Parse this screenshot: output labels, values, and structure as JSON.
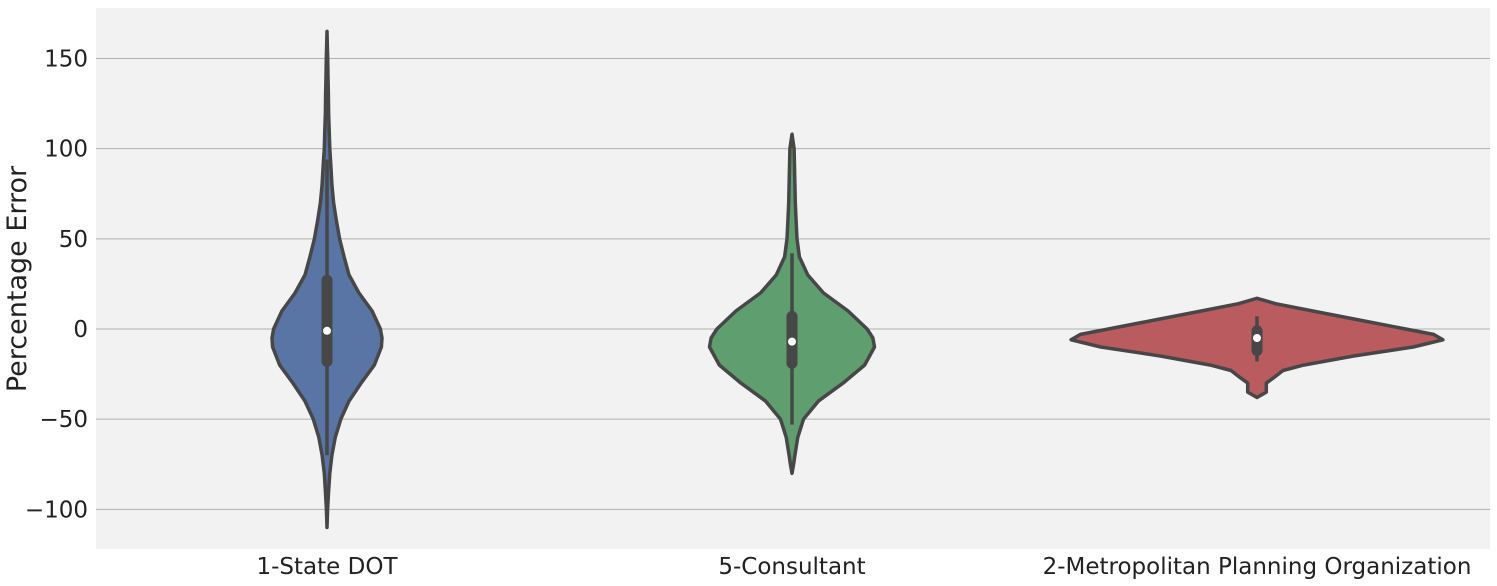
{
  "chart_data": {
    "type": "violin",
    "ylabel": "Percentage Error",
    "xlabel": "",
    "ylim": [
      -122,
      178
    ],
    "yticks": [
      -100,
      -50,
      0,
      50,
      100,
      150
    ],
    "ytick_labels": [
      "−100",
      "−50",
      "0",
      "50",
      "100",
      "150"
    ],
    "grid": "horizontal",
    "background": "#f2f2f2",
    "gridline_color": "#b0b0b0",
    "outline_color": "#474747",
    "categories": [
      "1-State DOT",
      "5-Consultant",
      "2-Metropolitan Planning Organization"
    ],
    "series": [
      {
        "category": "1-State DOT",
        "color": "#5875a6",
        "min": -110,
        "max": 165,
        "q1": -18,
        "median": -1,
        "q3": 27,
        "whisker_low": -70,
        "whisker_high": 94,
        "density": [
          [
            -110,
            0.0
          ],
          [
            -100,
            0.01
          ],
          [
            -90,
            0.03
          ],
          [
            -80,
            0.05
          ],
          [
            -70,
            0.09
          ],
          [
            -60,
            0.15
          ],
          [
            -50,
            0.25
          ],
          [
            -40,
            0.4
          ],
          [
            -30,
            0.62
          ],
          [
            -20,
            0.86
          ],
          [
            -10,
            0.99
          ],
          [
            -5,
            1.0
          ],
          [
            0,
            0.97
          ],
          [
            10,
            0.82
          ],
          [
            20,
            0.58
          ],
          [
            30,
            0.4
          ],
          [
            40,
            0.31
          ],
          [
            50,
            0.23
          ],
          [
            60,
            0.17
          ],
          [
            70,
            0.12
          ],
          [
            80,
            0.09
          ],
          [
            90,
            0.07
          ],
          [
            100,
            0.05
          ],
          [
            110,
            0.04
          ],
          [
            120,
            0.03
          ],
          [
            130,
            0.025
          ],
          [
            140,
            0.018
          ],
          [
            150,
            0.012
          ],
          [
            158,
            0.006
          ],
          [
            165,
            0.0
          ]
        ]
      },
      {
        "category": "5-Consultant",
        "color": "#5f9e6e",
        "min": -80,
        "max": 108,
        "q1": -19,
        "median": -7,
        "q3": 7,
        "whisker_low": -53,
        "whisker_high": 42,
        "density": [
          [
            -80,
            0.0
          ],
          [
            -75,
            0.02
          ],
          [
            -70,
            0.035
          ],
          [
            -60,
            0.07
          ],
          [
            -50,
            0.14
          ],
          [
            -40,
            0.32
          ],
          [
            -30,
            0.62
          ],
          [
            -20,
            0.88
          ],
          [
            -10,
            1.0
          ],
          [
            -5,
            0.98
          ],
          [
            0,
            0.91
          ],
          [
            10,
            0.68
          ],
          [
            20,
            0.38
          ],
          [
            30,
            0.19
          ],
          [
            40,
            0.09
          ],
          [
            50,
            0.06
          ],
          [
            60,
            0.05
          ],
          [
            70,
            0.04
          ],
          [
            80,
            0.035
          ],
          [
            90,
            0.03
          ],
          [
            100,
            0.025
          ],
          [
            108,
            0.0
          ]
        ]
      },
      {
        "category": "2-Metropolitan Planning Organization",
        "color": "#b95b5f",
        "min": -38,
        "max": 17,
        "q1": -12,
        "median": -5,
        "q3": -1,
        "whisker_low": -18,
        "whisker_high": 7,
        "density": [
          [
            -38,
            0.0
          ],
          [
            -35,
            0.05
          ],
          [
            -30,
            0.05
          ],
          [
            -27,
            0.09
          ],
          [
            -23,
            0.14
          ],
          [
            -20,
            0.25
          ],
          [
            -15,
            0.52
          ],
          [
            -10,
            0.84
          ],
          [
            -6,
            1.0
          ],
          [
            -3,
            0.95
          ],
          [
            0,
            0.8
          ],
          [
            5,
            0.55
          ],
          [
            10,
            0.3
          ],
          [
            14,
            0.1
          ],
          [
            17,
            0.0
          ]
        ]
      }
    ]
  }
}
